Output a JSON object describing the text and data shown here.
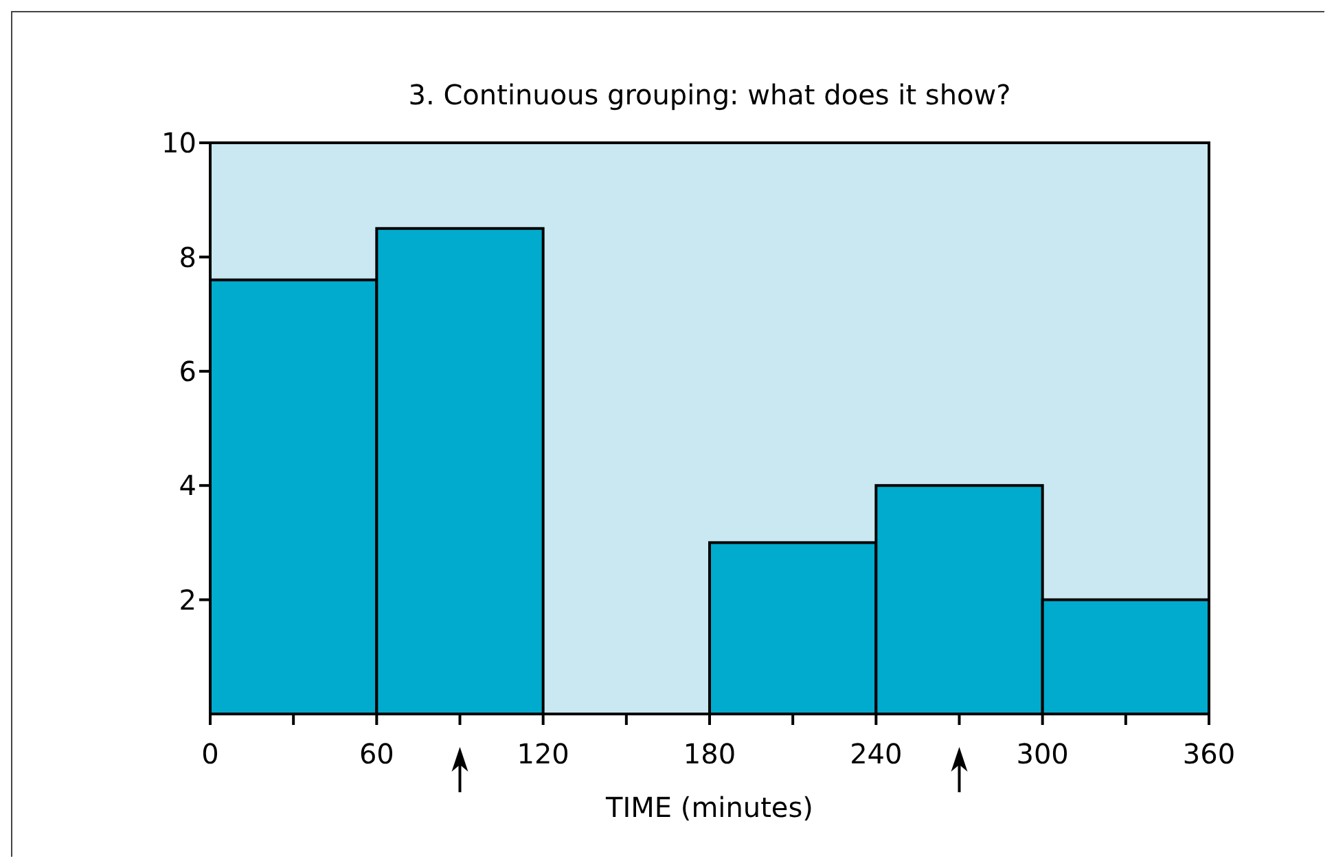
{
  "chart_data": {
    "type": "histogram",
    "title": "3. Continuous grouping: what does it show?",
    "xlabel": "TIME (minutes)",
    "bins": [
      0,
      60,
      120,
      180,
      240,
      300,
      360
    ],
    "values": [
      7.6,
      8.5,
      0,
      3,
      4,
      2
    ],
    "color": "#00abcd",
    "xlim": [
      0,
      360
    ],
    "xticks": [
      0,
      {
        "value": 30,
        "label": null
      },
      60,
      {
        "value": 90,
        "label": null
      },
      120,
      {
        "value": 150,
        "label": null
      },
      180,
      {
        "value": 210,
        "label": null
      },
      240,
      {
        "value": 270,
        "label": null
      },
      300,
      {
        "value": 330,
        "label": null
      },
      360
    ],
    "ylim": [
      0,
      10
    ],
    "yticks": [
      2,
      4,
      6,
      8,
      10
    ],
    "grid": false,
    "legend": false
  }
}
